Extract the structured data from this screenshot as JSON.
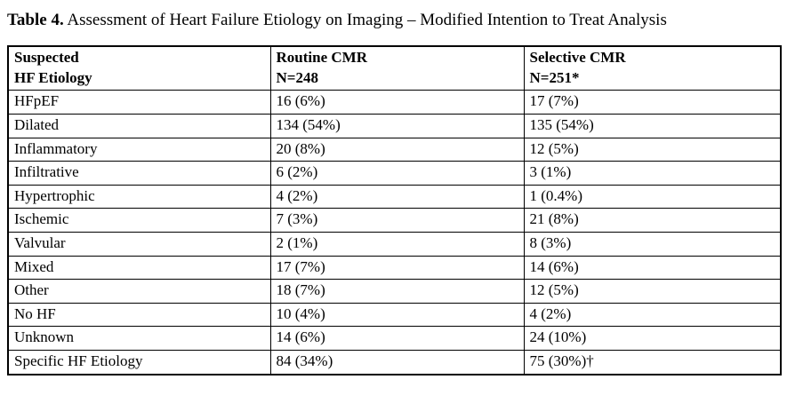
{
  "caption": {
    "label": "Table 4.",
    "text": " Assessment of Heart Failure Etiology on Imaging – Modified Intention to Treat Analysis"
  },
  "table": {
    "headers": [
      {
        "line1": "Suspected",
        "line2": "HF Etiology"
      },
      {
        "line1": "Routine CMR",
        "line2": "N=248"
      },
      {
        "line1": "Selective CMR",
        "line2": "N=251*"
      }
    ],
    "rows": [
      {
        "etiology": "HFpEF",
        "routine": "16 (6%)",
        "selective": "17 (7%)"
      },
      {
        "etiology": "Dilated",
        "routine": "134 (54%)",
        "selective": "135 (54%)"
      },
      {
        "etiology": "Inflammatory",
        "routine": "20 (8%)",
        "selective": "12 (5%)"
      },
      {
        "etiology": "Infiltrative",
        "routine": "6 (2%)",
        "selective": "3 (1%)"
      },
      {
        "etiology": "Hypertrophic",
        "routine": "4 (2%)",
        "selective": "1 (0.4%)"
      },
      {
        "etiology": "Ischemic",
        "routine": "7 (3%)",
        "selective": "21 (8%)"
      },
      {
        "etiology": "Valvular",
        "routine": "2 (1%)",
        "selective": "8 (3%)"
      },
      {
        "etiology": "Mixed",
        "routine": "17 (7%)",
        "selective": "14 (6%)"
      },
      {
        "etiology": "Other",
        "routine": "18 (7%)",
        "selective": "12 (5%)"
      },
      {
        "etiology": "No HF",
        "routine": "10 (4%)",
        "selective": "4 (2%)"
      },
      {
        "etiology": "Unknown",
        "routine": "14 (6%)",
        "selective": "24 (10%)"
      },
      {
        "etiology": "Specific HF Etiology",
        "routine": "84 (34%)",
        "selective": "75 (30%)†"
      }
    ]
  },
  "chart_data": {
    "type": "table",
    "title": "Table 4. Assessment of Heart Failure Etiology on Imaging – Modified Intention to Treat Analysis",
    "columns": [
      "Suspected HF Etiology",
      "Routine CMR N=248",
      "Selective CMR N=251*"
    ],
    "rows": [
      [
        "HFpEF",
        "16 (6%)",
        "17 (7%)"
      ],
      [
        "Dilated",
        "134 (54%)",
        "135 (54%)"
      ],
      [
        "Inflammatory",
        "20 (8%)",
        "12 (5%)"
      ],
      [
        "Infiltrative",
        "6 (2%)",
        "3 (1%)"
      ],
      [
        "Hypertrophic",
        "4 (2%)",
        "1 (0.4%)"
      ],
      [
        "Ischemic",
        "7 (3%)",
        "21 (8%)"
      ],
      [
        "Valvular",
        "2 (1%)",
        "8 (3%)"
      ],
      [
        "Mixed",
        "17 (7%)",
        "14 (6%)"
      ],
      [
        "Other",
        "18 (7%)",
        "12 (5%)"
      ],
      [
        "No HF",
        "10 (4%)",
        "4 (2%)"
      ],
      [
        "Unknown",
        "14 (6%)",
        "24 (10%)"
      ],
      [
        "Specific HF Etiology",
        "84 (34%)",
        "75 (30%)†"
      ]
    ]
  }
}
